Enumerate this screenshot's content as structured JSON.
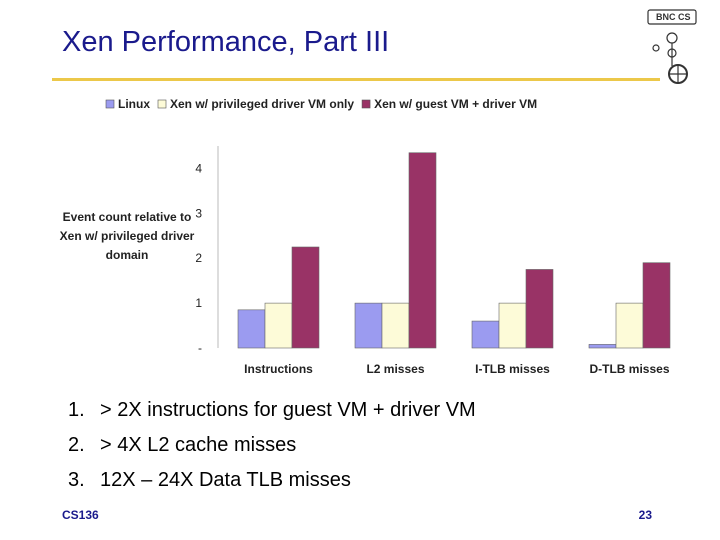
{
  "slide": {
    "title": "Xen Performance, Part III",
    "footer_left": "CS136",
    "page_number": "23",
    "logo_text": "BNC CS"
  },
  "bullets": [
    {
      "num": "1.",
      "text": "> 2X instructions for guest VM + driver VM"
    },
    {
      "num": "2.",
      "text": "> 4X L2 cache misses"
    },
    {
      "num": "3.",
      "text": "12X – 24X Data TLB misses"
    }
  ],
  "chart_data": {
    "type": "bar",
    "title": "",
    "xlabel": "",
    "ylabel": "Event count relative to Xen w/ privileged driver domain",
    "categories": [
      "Instructions",
      "L2 misses",
      "I-TLB misses",
      "D-TLB misses"
    ],
    "series": [
      {
        "name": "Linux",
        "color": "#9b9bf0",
        "values": [
          0.85,
          1.0,
          0.6,
          0.08
        ]
      },
      {
        "name": "Xen w/ privileged driver VM only",
        "color": "#fdfbd8",
        "values": [
          1.0,
          1.0,
          1.0,
          1.0
        ]
      },
      {
        "name": "Xen w/ guest VM + driver VM",
        "color": "#993366",
        "values": [
          2.25,
          4.35,
          1.75,
          1.9
        ]
      }
    ],
    "yticks": [
      "-",
      "1",
      "2",
      "3",
      "4"
    ],
    "ylim": [
      0,
      4.5
    ],
    "legend_position": "top",
    "grid": false
  }
}
